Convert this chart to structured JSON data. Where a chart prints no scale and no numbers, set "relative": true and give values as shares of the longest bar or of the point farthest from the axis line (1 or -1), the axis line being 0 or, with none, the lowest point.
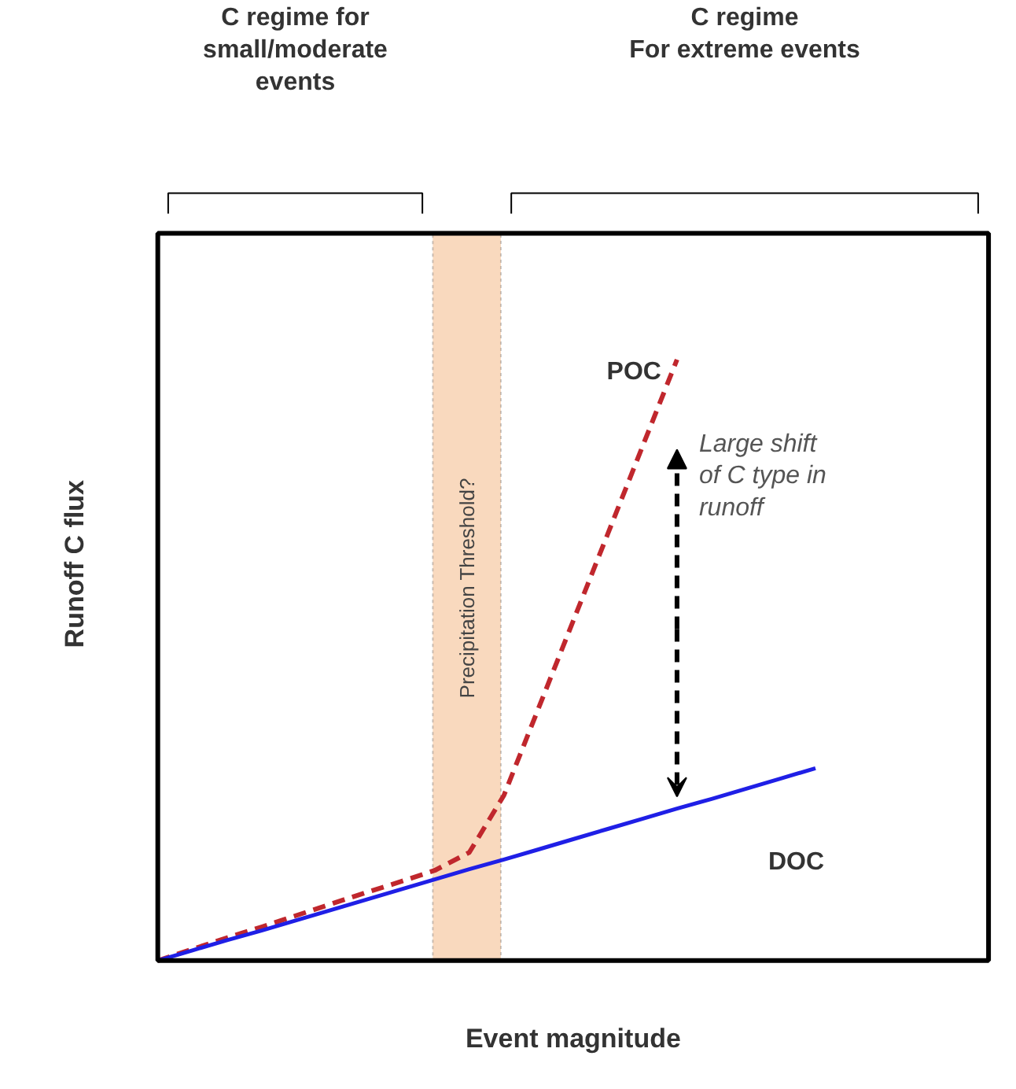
{
  "chart_data": {
    "type": "line",
    "relative": true,
    "xlabel": "Event magnitude",
    "ylabel": "Runoff C flux",
    "categories": [
      null,
      null,
      null,
      null,
      null,
      null,
      null,
      null,
      null,
      null,
      null,
      null,
      null,
      null,
      null,
      null,
      null,
      null,
      null,
      null,
      null,
      null,
      null,
      null,
      null
    ],
    "series": [
      {
        "name": "POC",
        "color": "#c0272d",
        "line_style": "dashed",
        "values": [
          0,
          0.019,
          0.038,
          0.056,
          0.075,
          0.094,
          0.113,
          0.131,
          0.15,
          0.18,
          0.275,
          0.42,
          0.565,
          0.71,
          0.855,
          1.0,
          null,
          null,
          null,
          null,
          null,
          null,
          null,
          null,
          null
        ]
      },
      {
        "name": "DOC",
        "color": "#1f1fe6",
        "line_style": "solid",
        "values": [
          0,
          0.017,
          0.034,
          0.05,
          0.067,
          0.084,
          0.101,
          0.118,
          0.135,
          0.152,
          0.168,
          0.185,
          0.202,
          0.219,
          0.236,
          0.253,
          0.269,
          0.286,
          0.303,
          0.32,
          null,
          null,
          null,
          null,
          null
        ]
      }
    ],
    "annotations": [
      "C regime for\nsmall/moderate\nevents",
      "C regime\nFor extreme events",
      "Precipitation Threshold?",
      "Large shift\nof C type in\nrunoff"
    ]
  }
}
